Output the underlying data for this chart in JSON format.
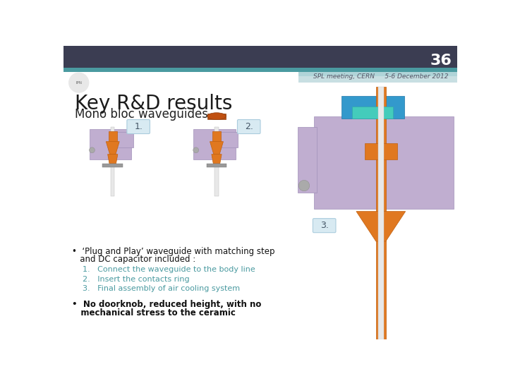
{
  "slide_number": "36",
  "header_top_color": "#3b3d52",
  "header_bar_color": "#4a9aa0",
  "header_bar2_color": "#b0d4d8",
  "background_color": "#ffffff",
  "slide_number_color": "#ffffff",
  "slide_number_fontsize": 16,
  "subtitle_line": "SPL meeting, CERN     5-6 December 2012",
  "subtitle_color": "#555566",
  "subtitle_fontsize": 6.5,
  "title_main": "Key R&D results",
  "title_main_color": "#1a1a1a",
  "title_main_fontsize": 20,
  "title_sub": "Mono bloc waveguides",
  "title_sub_color": "#222222",
  "title_sub_fontsize": 12,
  "label1": "1.",
  "label2": "2.",
  "label3": "3.",
  "label_color": "#445566",
  "label_fontsize": 9,
  "label_bg_color": "#d8eaf2",
  "label_border_color": "#aaccdd",
  "bullet1_line1": "•  ‘Plug and Play’ waveguide with matching step",
  "bullet1_line2": "   and DC capacitor included :",
  "bullet1_color": "#111111",
  "bullet1_fontsize": 8.5,
  "numbered_items": [
    "1.   Connect the waveguide to the body line",
    "2.   Insert the contacts ring",
    "3.   Final assembly of air cooling system"
  ],
  "numbered_color": "#4a9aa0",
  "numbered_fontsize": 8,
  "bullet2_line1": "•  No doorknob, reduced height, with no",
  "bullet2_line2": "   mechanical stress to the ceramic",
  "bullet2_color": "#111111",
  "bullet2_fontsize": 8.5,
  "purple": "#c0aed0",
  "purple_dark": "#a090b8",
  "orange": "#e07820",
  "orange_dark": "#c06010",
  "blue": "#3399cc",
  "cyan": "#44ccbb",
  "gray_light": "#d8d0e0",
  "white_pipe": "#e8e8e8"
}
